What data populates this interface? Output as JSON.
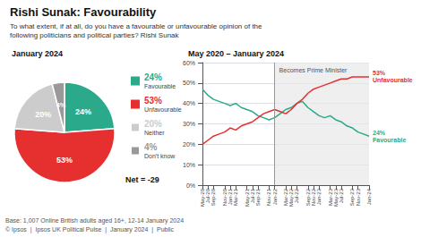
{
  "title": "Rishi Sunak: Favourability",
  "subtitle": [
    "To what extent, if at all, do you have a favourable or unfavourable opinion of the",
    "following politicians and political parties? Rishi Sunak"
  ],
  "footer": [
    "Base: 1,007 Online British adults aged 16+, 12-14 January 2024",
    "© Ipsos  |  Ipsos UK Political Pulse  |  January 2024  |  Public"
  ],
  "chart_data": [
    {
      "type": "pie",
      "title": "January 2024",
      "categories": [
        "Favourable",
        "Unfavourable",
        "Neither",
        "Don't know"
      ],
      "values": [
        24,
        53,
        20,
        4
      ],
      "colors": [
        "#2aaa8a",
        "#e63030",
        "#cccccc",
        "#999999"
      ],
      "data_labels": true,
      "value_labels": [
        "24%",
        "53%",
        "20%",
        "4%"
      ],
      "legend": "right",
      "annotations": [
        "Net = -29"
      ]
    },
    {
      "type": "line",
      "title": "May 2020 – January 2024",
      "categories": [
        "May-20",
        "Jul-20",
        "Sep-20",
        null,
        "Nov-20",
        "Jan-21",
        "Mar-21",
        null,
        "May-21",
        "Jul-21",
        "Sep-21",
        null,
        "Nov-21",
        "Jan-22",
        null,
        "Mar-22",
        "May-22",
        "Jul-22",
        null,
        "Sep-22",
        "Nov-22",
        "Jan-23",
        null,
        "Mar-23",
        "May-23",
        "Jul-23",
        null,
        "Sep-23",
        "Nov-23",
        null,
        "Jan-24"
      ],
      "series": [
        {
          "name": "Favourable",
          "color": "#2aaa8a",
          "end_label": "24%\nFavourable",
          "values": [
            47,
            44,
            42,
            41,
            40,
            39,
            40,
            38,
            37,
            36,
            34,
            33,
            32,
            33,
            35,
            37,
            38,
            40,
            41,
            38,
            36,
            34,
            33,
            34,
            32,
            31,
            29,
            28,
            26,
            25,
            24
          ]
        },
        {
          "name": "Unfavourable",
          "color": "#e63030",
          "end_label": "53%\nUnfavourable",
          "values": [
            20,
            22,
            24,
            25,
            26,
            28,
            27,
            29,
            30,
            31,
            33,
            35,
            36,
            37,
            36,
            35,
            37,
            40,
            42,
            45,
            47,
            48,
            49,
            50,
            51,
            52,
            52,
            53,
            53,
            53,
            53
          ]
        }
      ],
      "ylim": [
        0,
        60
      ],
      "yticks": [
        {
          "value": 0,
          "label": "0%"
        },
        {
          "value": 10,
          "label": "10%"
        },
        {
          "value": 20,
          "label": "20%"
        },
        {
          "value": 30,
          "label": "30%"
        },
        {
          "value": 40,
          "label": "40%"
        },
        {
          "value": 50,
          "label": "50%"
        },
        {
          "value": 60,
          "label": "60%"
        }
      ],
      "grid": true,
      "annotations": [
        {
          "text": "Becomes Prime Minister",
          "x": "Jan-22"
        }
      ]
    }
  ]
}
